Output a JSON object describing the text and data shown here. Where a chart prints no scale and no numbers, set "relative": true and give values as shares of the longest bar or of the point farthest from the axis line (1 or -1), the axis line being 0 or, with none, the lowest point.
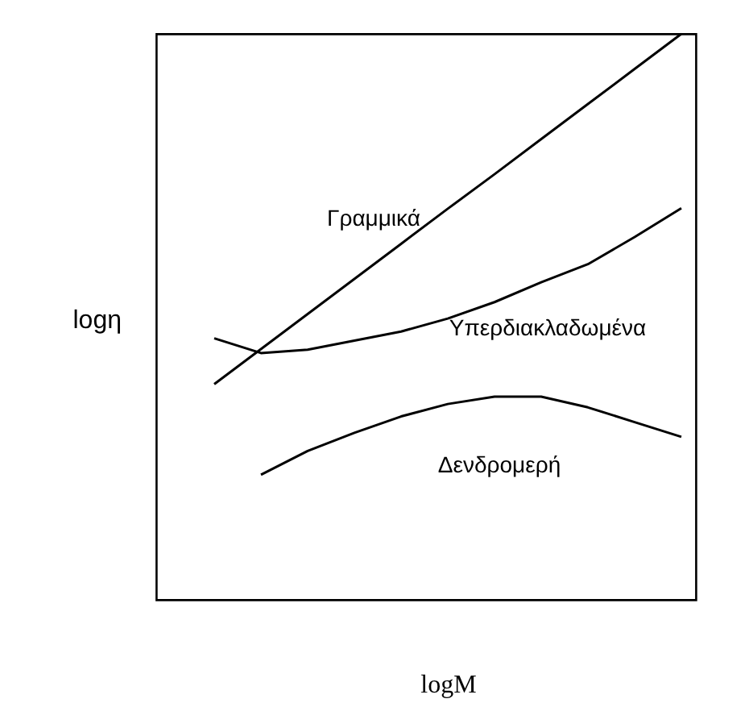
{
  "chart_data": {
    "type": "line",
    "relative": true,
    "xlabel": "logM",
    "ylabel": "logη",
    "marker": "none",
    "line_style": "solid",
    "categories": [
      null,
      null,
      null,
      null,
      null,
      null,
      null,
      null,
      null,
      null,
      null
    ],
    "series": [
      {
        "name": "Γραμμικά",
        "color": "#000000",
        "values": [
          0.381,
          0.443,
          0.505,
          0.567,
          0.629,
          0.691,
          0.752,
          0.814,
          0.876,
          0.938,
          1.0
        ]
      },
      {
        "name": "Υπερδιακλαδωμένα",
        "color": "#000000",
        "values": [
          0.462,
          0.436,
          0.442,
          0.458,
          0.474,
          0.497,
          0.526,
          0.561,
          0.593,
          0.641,
          0.692
        ]
      },
      {
        "name": "Δενδρομερή",
        "color": "#000000",
        "values": [
          null,
          0.221,
          0.263,
          0.295,
          0.324,
          0.346,
          0.359,
          0.359,
          0.34,
          0.314,
          0.288
        ]
      }
    ]
  }
}
